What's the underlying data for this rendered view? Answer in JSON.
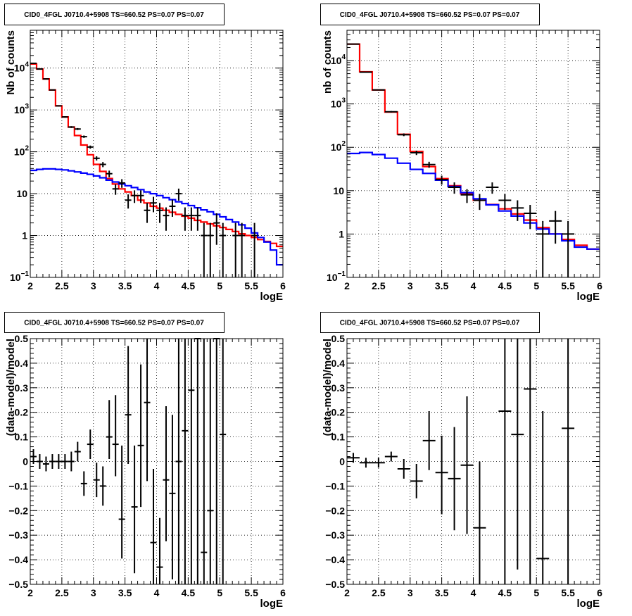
{
  "chart_data": [
    {
      "type": "histogram",
      "title": "CID0_4FGL J0710.4+5908 TS=660.52 PS=0.07 PS=0.07",
      "xlabel": "logE",
      "ylabel": "Nb of counts",
      "xlim": [
        2,
        6
      ],
      "ylim": [
        0.1,
        80000
      ],
      "yscale": "log",
      "grid": true,
      "x_ticks": [
        "2",
        "2.5",
        "3",
        "3.5",
        "4",
        "4.5",
        "5",
        "5.5",
        "6"
      ],
      "y_ticks": [
        {
          "value": 0.1,
          "label": "10",
          "sup": "−1"
        },
        {
          "value": 1,
          "label": "1",
          "sup": ""
        },
        {
          "value": 10,
          "label": "10",
          "sup": ""
        },
        {
          "value": 100,
          "label": "10",
          "sup": "2"
        },
        {
          "value": 1000,
          "label": "10",
          "sup": "3"
        },
        {
          "value": 10000,
          "label": "10",
          "sup": "4"
        }
      ],
      "bin_edges_start": 2.0,
      "bin_width": 0.1,
      "series": [
        {
          "color": "#ff0000",
          "style": "step",
          "values": [
            12500,
            9500,
            5500,
            3000,
            1250,
            680,
            390,
            245,
            145,
            85,
            50,
            34,
            23,
            17,
            13,
            11,
            9,
            7,
            6,
            5,
            4.5,
            4,
            3.6,
            3.2,
            2.9,
            2.6,
            2.3,
            2.1,
            1.9,
            1.7,
            1.55,
            1.4,
            1.25,
            1.1,
            1.0,
            0.9,
            0.8,
            0.72,
            0.65,
            0.55
          ]
        },
        {
          "color": "#0000ff",
          "style": "step",
          "values": [
            36,
            38,
            39,
            39,
            38,
            37,
            35,
            33,
            31,
            29,
            26.5,
            24,
            21,
            19,
            17,
            15.5,
            14,
            12.5,
            11,
            10,
            9,
            8,
            7.2,
            6.4,
            5.8,
            5.2,
            4.6,
            4.1,
            3.7,
            3.2,
            2.8,
            2.4,
            2.1,
            1.8,
            1.5,
            1.15,
            0.9,
            0.7,
            0.45,
            0.2
          ]
        }
      ],
      "data_points": {
        "color": "#000000",
        "x": [
          2.05,
          2.15,
          2.25,
          2.35,
          2.45,
          2.55,
          2.65,
          2.75,
          2.85,
          2.95,
          3.05,
          3.15,
          3.25,
          3.35,
          3.45,
          3.55,
          3.65,
          3.75,
          3.85,
          3.95,
          4.05,
          4.15,
          4.25,
          4.35,
          4.45,
          4.55,
          4.65,
          4.75,
          4.85,
          4.95,
          5.05,
          5.15,
          5.25,
          5.35,
          5.45,
          5.55
        ],
        "y": [
          13000,
          9500,
          5500,
          3000,
          1250,
          680,
          390,
          350,
          230,
          130,
          70,
          50,
          30,
          13,
          18,
          7,
          9,
          9,
          4,
          6,
          4,
          3,
          5,
          10,
          3,
          3,
          3,
          1,
          1,
          2,
          1,
          0,
          1,
          1,
          0,
          1
        ],
        "err_lo": [
          110,
          95,
          75,
          55,
          35,
          26,
          20,
          19,
          15,
          11,
          8,
          7,
          5.5,
          3.6,
          4.2,
          2.6,
          3,
          3,
          2,
          2.4,
          2,
          1.7,
          2.2,
          3.2,
          1.7,
          1.7,
          1.7,
          0.99,
          0.99,
          1.4,
          0.99,
          0,
          0.99,
          0.99,
          0,
          0.99
        ],
        "err_hi": [
          110,
          95,
          75,
          55,
          35,
          26,
          20,
          19,
          15,
          11,
          8,
          7,
          5.5,
          3.6,
          4.2,
          2.6,
          3,
          3,
          2,
          2.4,
          2,
          1.7,
          2.2,
          3.2,
          1.7,
          1.7,
          1.7,
          1,
          1,
          1.4,
          1,
          0,
          1,
          1,
          0,
          1
        ],
        "xerr": 0.05
      }
    },
    {
      "type": "histogram",
      "title": "CID0_4FGL J0710.4+5908 TS=660.52 PS=0.07 PS=0.07",
      "xlabel": "logE",
      "ylabel": "nb of counts",
      "xlim": [
        2,
        6
      ],
      "ylim": [
        0.1,
        50000
      ],
      "yscale": "log",
      "grid": true,
      "x_ticks": [
        "2",
        "2.5",
        "3",
        "3.5",
        "4",
        "4.5",
        "5",
        "5.5",
        "6"
      ],
      "y_ticks": [
        {
          "value": 0.1,
          "label": "10",
          "sup": "−1"
        },
        {
          "value": 1,
          "label": "1",
          "sup": ""
        },
        {
          "value": 10,
          "label": "10",
          "sup": ""
        },
        {
          "value": 100,
          "label": "10",
          "sup": "2"
        },
        {
          "value": 1000,
          "label": "10",
          "sup": "3"
        },
        {
          "value": 10000,
          "label": "10",
          "sup": "4"
        }
      ],
      "bin_edges_start": 2.0,
      "bin_width": 0.2,
      "series": [
        {
          "color": "#ff0000",
          "style": "step",
          "values": [
            24000,
            5500,
            2100,
            650,
            200,
            80,
            36,
            19,
            13,
            8.5,
            6,
            4.8,
            3.8,
            2.9,
            2.1,
            1.4,
            1.0,
            0.75,
            0.55,
            0.45
          ]
        },
        {
          "color": "#0000ff",
          "style": "step",
          "values": [
            72,
            76,
            68,
            56,
            43,
            31,
            25,
            17.5,
            12.5,
            9,
            6.5,
            4.7,
            3.4,
            2.6,
            1.8,
            1.3,
            1.0,
            0.7,
            0.5,
            0.45
          ]
        }
      ],
      "data_points": {
        "color": "#000000",
        "x": [
          2.1,
          2.3,
          2.5,
          2.7,
          2.9,
          3.1,
          3.3,
          3.5,
          3.7,
          3.9,
          4.1,
          4.3,
          4.5,
          4.7,
          4.9,
          5.1,
          5.3,
          5.5
        ],
        "y": [
          24000,
          5400,
          2100,
          660,
          195,
          75,
          40,
          18,
          12,
          8,
          6,
          12,
          6,
          4,
          3,
          1,
          2,
          1
        ],
        "err_lo": [
          155,
          73,
          46,
          26,
          14,
          8.7,
          6.3,
          4.2,
          3.5,
          2.8,
          2.4,
          3.5,
          2.4,
          2,
          1.7,
          0.99,
          1.4,
          0.99
        ],
        "err_hi": [
          155,
          73,
          46,
          26,
          14,
          8.7,
          6.3,
          4.2,
          3.5,
          2.8,
          2.4,
          3.5,
          2.4,
          2,
          1.7,
          1,
          1.4,
          1
        ],
        "xerr": 0.1
      }
    },
    {
      "type": "scatter",
      "title": "CID0_4FGL J0710.4+5908 TS=660.52 PS=0.07 PS=0.07",
      "xlabel": "logE",
      "ylabel": "(data-model)/model",
      "xlim": [
        2,
        6
      ],
      "ylim": [
        -0.5,
        0.5
      ],
      "grid": true,
      "x_ticks": [
        "2",
        "2.5",
        "3",
        "3.5",
        "4",
        "4.5",
        "5",
        "5.5",
        "6"
      ],
      "y_ticks": [
        "−0.5",
        "−0.4",
        "−0.3",
        "−0.2",
        "−0.1",
        "0",
        "0.1",
        "0.2",
        "0.3",
        "0.4",
        "0.5"
      ],
      "data_points": {
        "color": "#000000",
        "x": [
          2.05,
          2.15,
          2.25,
          2.35,
          2.45,
          2.55,
          2.65,
          2.75,
          2.85,
          2.95,
          3.05,
          3.15,
          3.25,
          3.35,
          3.45,
          3.55,
          3.65,
          3.75,
          3.85,
          3.95,
          4.05,
          4.15,
          4.25,
          4.35,
          4.45,
          4.55,
          4.65,
          4.75,
          4.85,
          4.95,
          5.05
        ],
        "y": [
          0.02,
          0.0,
          -0.01,
          0.0,
          0.0,
          0.0,
          0.0,
          0.04,
          -0.09,
          0.07,
          -0.075,
          -0.1,
          0.1,
          0.07,
          -0.235,
          0.19,
          -0.185,
          0.065,
          0.24,
          -0.33,
          -0.43,
          -0.075,
          -0.13,
          0.0,
          0.125,
          0.29,
          0.5,
          -0.37,
          -0.2,
          0.5,
          0.11
        ],
        "err_lo": [
          0.03,
          0.03,
          0.03,
          0.03,
          0.03,
          0.03,
          0.04,
          0.04,
          0.05,
          0.06,
          0.07,
          0.08,
          0.09,
          0.13,
          0.16,
          0.2,
          0.27,
          0.25,
          0.32,
          0.25,
          0.15,
          0.25,
          0.35,
          0.55,
          0.65,
          0.8,
          1.0,
          0.7,
          0.9,
          1.0,
          0.9
        ],
        "err_hi": [
          0.03,
          0.03,
          0.03,
          0.03,
          0.03,
          0.03,
          0.04,
          0.04,
          0.05,
          0.06,
          0.07,
          0.08,
          0.15,
          0.2,
          0.3,
          0.28,
          0.25,
          0.33,
          0.45,
          0.3,
          0.2,
          0.3,
          0.32,
          0.5,
          0.4,
          0.4,
          0.2,
          0.9,
          0.7,
          0.2,
          0.5
        ],
        "xerr": 0.05
      }
    },
    {
      "type": "scatter",
      "title": "CID0_4FGL J0710.4+5908 TS=660.52 PS=0.07 PS=0.07",
      "xlabel": "logE",
      "ylabel": "(data-model)/model",
      "xlim": [
        2,
        6
      ],
      "ylim": [
        -0.5,
        0.5
      ],
      "grid": true,
      "x_ticks": [
        "2",
        "2.5",
        "3",
        "3.5",
        "4",
        "4.5",
        "5",
        "5.5",
        "6"
      ],
      "y_ticks": [
        "−0.5",
        "−0.4",
        "−0.3",
        "−0.2",
        "−0.1",
        "0",
        "0.1",
        "0.2",
        "0.3",
        "0.4",
        "0.5"
      ],
      "data_points": {
        "color": "#000000",
        "x": [
          2.1,
          2.3,
          2.5,
          2.7,
          2.9,
          3.1,
          3.3,
          3.5,
          3.7,
          3.9,
          4.1,
          4.5,
          4.7,
          4.9,
          5.1,
          5.5
        ],
        "y": [
          0.015,
          -0.005,
          -0.005,
          0.02,
          -0.03,
          -0.08,
          0.085,
          -0.045,
          -0.07,
          -0.015,
          -0.27,
          0.205,
          0.11,
          0.295,
          -0.395,
          0.135
        ],
        "err_lo": [
          0.02,
          0.02,
          0.02,
          0.02,
          0.04,
          0.07,
          0.12,
          0.17,
          0.21,
          0.28,
          0.3,
          0.8,
          0.55,
          0.9,
          0.3,
          0.8
        ],
        "err_hi": [
          0.02,
          0.02,
          0.02,
          0.02,
          0.04,
          0.07,
          0.12,
          0.15,
          0.21,
          0.28,
          0.27,
          0.5,
          0.5,
          0.4,
          0.6,
          0.5
        ],
        "xerr": 0.1
      }
    }
  ]
}
